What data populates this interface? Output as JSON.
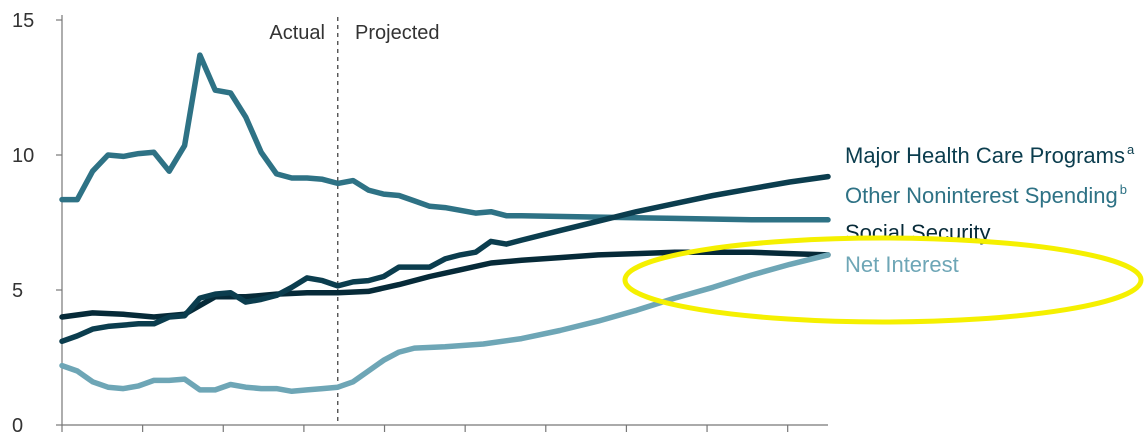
{
  "chart_data": {
    "type": "line",
    "title": "",
    "xlabel": "",
    "ylabel": "",
    "ylim": [
      0,
      15
    ],
    "y_ticks": [
      "0",
      "5",
      "10",
      "15"
    ],
    "x_ticks_count": 10,
    "grid": false,
    "legend": "right-end-labels",
    "regions": {
      "actual_label": "Actual",
      "projected_label": "Projected",
      "divider_x": 36
    },
    "annotation": {
      "type": "ellipse-highlight",
      "color": "#f5f000",
      "target": "Net Interest"
    },
    "series": [
      {
        "name": "Major Health Care Programs",
        "footnote": "a",
        "color": "#0b3d4e",
        "points": [
          [
            0,
            3.1
          ],
          [
            2,
            3.3
          ],
          [
            4,
            3.55
          ],
          [
            6,
            3.65
          ],
          [
            8,
            3.7
          ],
          [
            10,
            3.75
          ],
          [
            12,
            3.75
          ],
          [
            14,
            4.0
          ],
          [
            16,
            4.05
          ],
          [
            18,
            4.7
          ],
          [
            20,
            4.85
          ],
          [
            22,
            4.9
          ],
          [
            24,
            4.55
          ],
          [
            26,
            4.65
          ],
          [
            28,
            4.8
          ],
          [
            30,
            5.1
          ],
          [
            32,
            5.45
          ],
          [
            34,
            5.35
          ],
          [
            36,
            5.15
          ],
          [
            38,
            5.3
          ],
          [
            40,
            5.35
          ],
          [
            42,
            5.5
          ],
          [
            44,
            5.85
          ],
          [
            46,
            5.85
          ],
          [
            48,
            5.85
          ],
          [
            50,
            6.15
          ],
          [
            52,
            6.3
          ],
          [
            54,
            6.4
          ],
          [
            56,
            6.8
          ],
          [
            58,
            6.7
          ],
          [
            60,
            6.85
          ],
          [
            65,
            7.2
          ],
          [
            70,
            7.55
          ],
          [
            75,
            7.9
          ],
          [
            80,
            8.2
          ],
          [
            85,
            8.5
          ],
          [
            90,
            8.75
          ],
          [
            95,
            9.0
          ],
          [
            100,
            9.2
          ]
        ]
      },
      {
        "name": "Other Noninterest Spending",
        "footnote": "b",
        "color": "#2e7285",
        "points": [
          [
            0,
            8.35
          ],
          [
            2,
            8.35
          ],
          [
            4,
            9.4
          ],
          [
            6,
            10.0
          ],
          [
            8,
            9.95
          ],
          [
            10,
            10.05
          ],
          [
            12,
            10.1
          ],
          [
            14,
            9.4
          ],
          [
            16,
            10.35
          ],
          [
            18,
            13.7
          ],
          [
            20,
            12.4
          ],
          [
            22,
            12.3
          ],
          [
            24,
            11.4
          ],
          [
            26,
            10.1
          ],
          [
            28,
            9.3
          ],
          [
            30,
            9.15
          ],
          [
            32,
            9.15
          ],
          [
            34,
            9.1
          ],
          [
            36,
            8.95
          ],
          [
            38,
            9.05
          ],
          [
            40,
            8.7
          ],
          [
            42,
            8.55
          ],
          [
            44,
            8.5
          ],
          [
            46,
            8.3
          ],
          [
            48,
            8.1
          ],
          [
            50,
            8.05
          ],
          [
            52,
            7.95
          ],
          [
            54,
            7.85
          ],
          [
            56,
            7.9
          ],
          [
            58,
            7.75
          ],
          [
            60,
            7.75
          ],
          [
            70,
            7.7
          ],
          [
            80,
            7.65
          ],
          [
            90,
            7.6
          ],
          [
            100,
            7.6
          ]
        ]
      },
      {
        "name": "Social Security",
        "footnote": "",
        "color": "#062a38",
        "points": [
          [
            0,
            4.0
          ],
          [
            4,
            4.15
          ],
          [
            8,
            4.1
          ],
          [
            12,
            4.0
          ],
          [
            16,
            4.1
          ],
          [
            20,
            4.75
          ],
          [
            24,
            4.75
          ],
          [
            28,
            4.85
          ],
          [
            32,
            4.9
          ],
          [
            36,
            4.9
          ],
          [
            40,
            4.95
          ],
          [
            44,
            5.2
          ],
          [
            48,
            5.5
          ],
          [
            52,
            5.75
          ],
          [
            56,
            6.0
          ],
          [
            60,
            6.1
          ],
          [
            65,
            6.2
          ],
          [
            70,
            6.3
          ],
          [
            75,
            6.35
          ],
          [
            80,
            6.4
          ],
          [
            85,
            6.4
          ],
          [
            90,
            6.4
          ],
          [
            95,
            6.35
          ],
          [
            100,
            6.3
          ]
        ]
      },
      {
        "name": "Net Interest",
        "footnote": "",
        "color": "#6ea6b6",
        "points": [
          [
            0,
            2.2
          ],
          [
            2,
            2.0
          ],
          [
            4,
            1.6
          ],
          [
            6,
            1.4
          ],
          [
            8,
            1.35
          ],
          [
            10,
            1.45
          ],
          [
            12,
            1.65
          ],
          [
            14,
            1.65
          ],
          [
            16,
            1.7
          ],
          [
            18,
            1.3
          ],
          [
            20,
            1.3
          ],
          [
            22,
            1.5
          ],
          [
            24,
            1.4
          ],
          [
            26,
            1.35
          ],
          [
            28,
            1.35
          ],
          [
            30,
            1.25
          ],
          [
            32,
            1.3
          ],
          [
            34,
            1.35
          ],
          [
            36,
            1.4
          ],
          [
            38,
            1.6
          ],
          [
            40,
            2.0
          ],
          [
            42,
            2.4
          ],
          [
            44,
            2.7
          ],
          [
            46,
            2.85
          ],
          [
            50,
            2.9
          ],
          [
            55,
            3.0
          ],
          [
            60,
            3.2
          ],
          [
            65,
            3.5
          ],
          [
            70,
            3.85
          ],
          [
            75,
            4.25
          ],
          [
            80,
            4.7
          ],
          [
            85,
            5.1
          ],
          [
            90,
            5.55
          ],
          [
            95,
            5.95
          ],
          [
            100,
            6.3
          ]
        ]
      }
    ]
  }
}
